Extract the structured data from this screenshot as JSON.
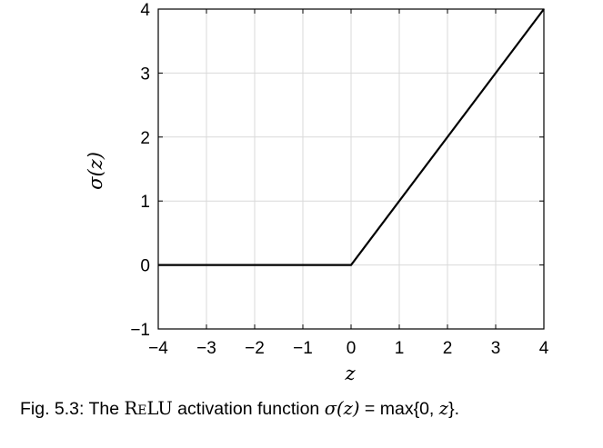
{
  "chart_data": {
    "type": "line",
    "xlabel": "z",
    "ylabel": "σ(z)",
    "xlim": [
      -4,
      4
    ],
    "ylim": [
      -1,
      4
    ],
    "grid": true,
    "x_ticks": [
      -4,
      -3,
      -2,
      -1,
      0,
      1,
      2,
      3,
      4
    ],
    "y_ticks": [
      -1,
      0,
      1,
      2,
      3,
      4
    ],
    "x_tick_labels": [
      "−4",
      "−3",
      "−2",
      "−1",
      "0",
      "1",
      "2",
      "3",
      "4"
    ],
    "y_tick_labels": [
      "−1",
      "0",
      "1",
      "2",
      "3",
      "4"
    ],
    "series": [
      {
        "x": [
          -4,
          0,
          4
        ],
        "y": [
          0,
          0,
          4
        ],
        "color": "#000000"
      }
    ]
  },
  "caption": {
    "prefix": "Fig. 5.3: The ",
    "relu": "ReLU",
    "middle": " activation function ",
    "sigma": "σ(z)",
    "eq": " = max{0, ",
    "z": "z",
    "close": "}."
  }
}
